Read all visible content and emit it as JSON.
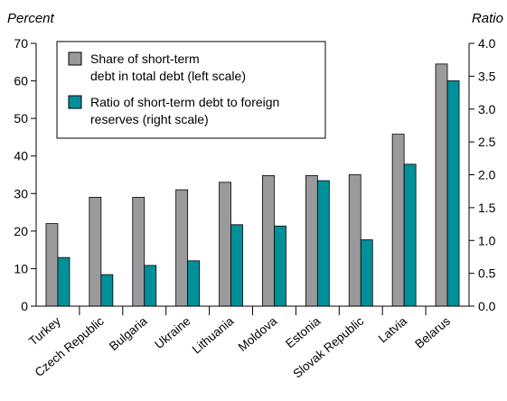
{
  "chart_data": {
    "type": "bar",
    "left_axis_label": "Percent",
    "right_axis_label": "Ratio",
    "left_ylim": [
      0,
      70
    ],
    "right_ylim": [
      0,
      4.0
    ],
    "left_ticks": [
      "0",
      "10",
      "20",
      "30",
      "40",
      "50",
      "60",
      "70"
    ],
    "right_ticks": [
      "0.0",
      "0.5",
      "1.0",
      "1.5",
      "2.0",
      "2.5",
      "3.0",
      "3.5",
      "4.0"
    ],
    "categories": [
      "Turkey",
      "Czech Republic",
      "Bulgaria",
      "Ukraine",
      "Lithuania",
      "Moldova",
      "Estonia",
      "Slovak Republic",
      "Latvia",
      "Belarus"
    ],
    "series": [
      {
        "name_line1": "Share of short-term",
        "name_line2": "debt in total debt (left scale)",
        "axis": "left",
        "color": "#9a9a9c",
        "values": [
          22,
          29,
          29,
          31,
          33,
          34.8,
          34.8,
          35,
          45.8,
          64.5
        ]
      },
      {
        "name_line1": "Ratio of short-term debt to foreign",
        "name_line2": "reserves (right scale)",
        "axis": "right",
        "color": "#00909a",
        "values": [
          0.74,
          0.48,
          0.62,
          0.69,
          1.24,
          1.22,
          1.91,
          1.01,
          2.16,
          3.43
        ]
      }
    ],
    "grid": false,
    "legend_position": "top-left"
  }
}
